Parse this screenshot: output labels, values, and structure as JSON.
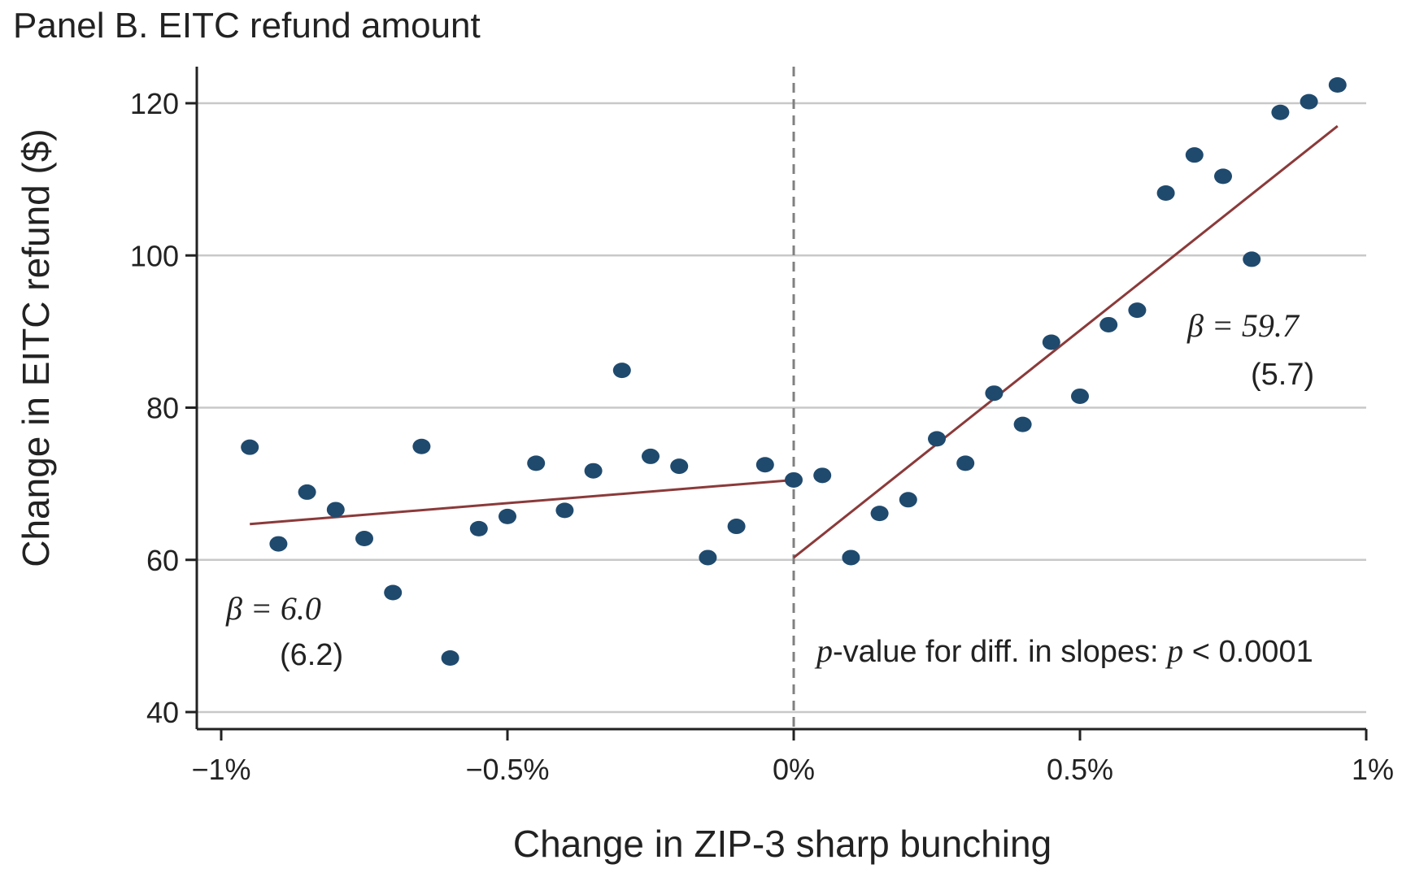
{
  "panel_title": "Panel B. EITC refund amount",
  "colors": {
    "dots": "#1f4a6e",
    "fit_line": "#8b3a3a",
    "grid": "#c8c8c8",
    "vline": "#808080",
    "axis": "#222222"
  },
  "chart_data": {
    "type": "scatter",
    "title": "",
    "xlabel": "Change in ZIP-3 sharp bunching",
    "ylabel": "Change in EITC refund ($)",
    "xlim": [
      -1.0,
      1.0
    ],
    "ylim": [
      40,
      125
    ],
    "x_ticks": [
      -1.0,
      -0.5,
      0.0,
      0.5,
      1.0
    ],
    "x_tick_labels": [
      "−1%",
      "−0.5%",
      "0%",
      "0.5%",
      "1%"
    ],
    "y_ticks": [
      40,
      60,
      80,
      100,
      120
    ],
    "y_tick_labels": [
      "40",
      "60",
      "80",
      "100",
      "120"
    ],
    "grid": "horizontal",
    "vertical_reference_line_x": 0.0,
    "points": [
      {
        "x": -0.95,
        "y": 74.8
      },
      {
        "x": -0.9,
        "y": 62.1
      },
      {
        "x": -0.85,
        "y": 68.9
      },
      {
        "x": -0.8,
        "y": 66.6
      },
      {
        "x": -0.75,
        "y": 62.8
      },
      {
        "x": -0.7,
        "y": 55.7
      },
      {
        "x": -0.65,
        "y": 74.9
      },
      {
        "x": -0.6,
        "y": 47.1
      },
      {
        "x": -0.55,
        "y": 64.1
      },
      {
        "x": -0.5,
        "y": 65.7
      },
      {
        "x": -0.45,
        "y": 72.7
      },
      {
        "x": -0.4,
        "y": 66.5
      },
      {
        "x": -0.35,
        "y": 71.7
      },
      {
        "x": -0.3,
        "y": 84.9
      },
      {
        "x": -0.25,
        "y": 73.6
      },
      {
        "x": -0.2,
        "y": 72.3
      },
      {
        "x": -0.15,
        "y": 60.3
      },
      {
        "x": -0.1,
        "y": 64.4
      },
      {
        "x": -0.05,
        "y": 72.5
      },
      {
        "x": 0.0,
        "y": 70.5
      },
      {
        "x": 0.05,
        "y": 71.1
      },
      {
        "x": 0.1,
        "y": 60.3
      },
      {
        "x": 0.15,
        "y": 66.1
      },
      {
        "x": 0.2,
        "y": 67.9
      },
      {
        "x": 0.25,
        "y": 75.9
      },
      {
        "x": 0.3,
        "y": 72.7
      },
      {
        "x": 0.35,
        "y": 81.9
      },
      {
        "x": 0.4,
        "y": 77.8
      },
      {
        "x": 0.45,
        "y": 88.6
      },
      {
        "x": 0.5,
        "y": 81.5
      },
      {
        "x": 0.55,
        "y": 90.9
      },
      {
        "x": 0.6,
        "y": 92.8
      },
      {
        "x": 0.65,
        "y": 108.2
      },
      {
        "x": 0.7,
        "y": 113.2
      },
      {
        "x": 0.75,
        "y": 110.4
      },
      {
        "x": 0.8,
        "y": 99.5
      },
      {
        "x": 0.85,
        "y": 118.8
      },
      {
        "x": 0.9,
        "y": 120.2
      },
      {
        "x": 0.95,
        "y": 122.4
      }
    ],
    "fit_lines": [
      {
        "x": [
          -0.95,
          0.0
        ],
        "y": [
          64.7,
          70.5
        ]
      },
      {
        "x": [
          0.0,
          0.95
        ],
        "y": [
          60.3,
          117.0
        ]
      }
    ],
    "annotations": {
      "left_beta": "β = 6.0",
      "left_se": "(6.2)",
      "right_beta": "β = 59.7",
      "right_se": "(5.7)",
      "pvalue_italic": "p",
      "pvalue_text": "-value for diff. in slopes: ",
      "pvalue_italic2": "p",
      "pvalue_rest": " < 0.0001"
    }
  }
}
